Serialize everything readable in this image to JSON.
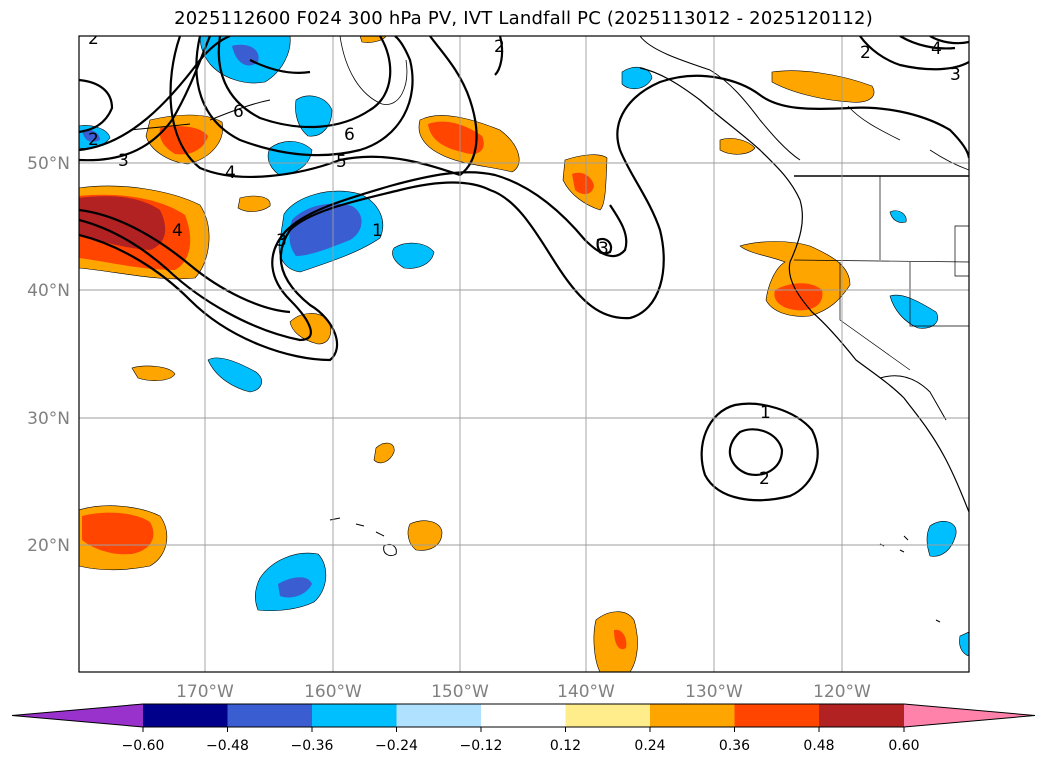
{
  "title": "2025112600 F024 300 hPa PV, IVT Landfall PC (2025113012 - 2025120112)",
  "map": {
    "lon_range": [
      -180,
      -110
    ],
    "lat_range": [
      10,
      60
    ],
    "lat_labels": [
      "50°N",
      "40°N",
      "30°N",
      "20°N"
    ],
    "lon_labels": [
      "170°W",
      "160°W",
      "150°W",
      "140°W",
      "130°W",
      "120°W"
    ],
    "contour_labels": [
      "2",
      "2",
      "3",
      "6",
      "6",
      "5",
      "4",
      "4",
      "3",
      "1",
      "2",
      "4",
      "3",
      "2",
      "3",
      "1",
      "2"
    ]
  },
  "colorbar": {
    "ticks": [
      "−0.60",
      "−0.48",
      "−0.36",
      "−0.24",
      "−0.12",
      "0.12",
      "0.24",
      "0.36",
      "0.48",
      "0.60"
    ],
    "colors": [
      "#9932cc",
      "#00008b",
      "#3a5ed1",
      "#00bfff",
      "#b0e2ff",
      "#ffffff",
      "#ffec8b",
      "#ffa500",
      "#ff4500",
      "#b22222",
      "#ff82ab"
    ]
  }
}
